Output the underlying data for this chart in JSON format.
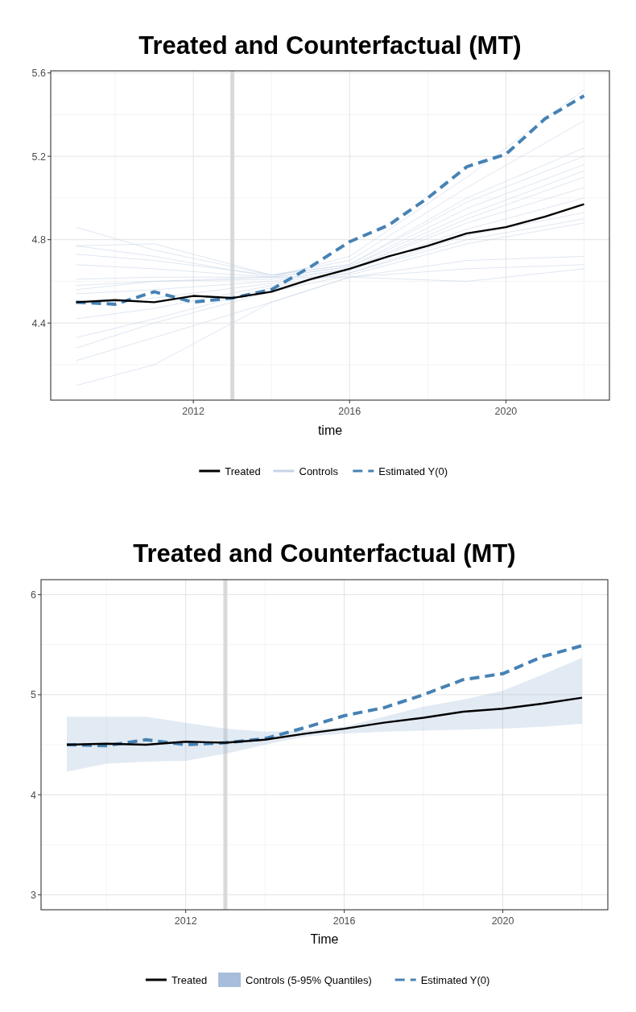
{
  "chart_data": [
    {
      "type": "line",
      "title": "Treated and Counterfactual (MT)",
      "xlabel": "time",
      "xlim": [
        2008.35,
        2022.65
      ],
      "ylim": [
        4.03,
        5.61
      ],
      "xticks": [
        2012,
        2016,
        2020
      ],
      "yticks": [
        4.4,
        4.8,
        5.2,
        5.6
      ],
      "grid": true,
      "legend": "bottom",
      "ref_lines": [
        {
          "axis": "x",
          "value": 2013,
          "color": "#d9d9d9"
        }
      ],
      "series": [
        {
          "name": "Treated",
          "color": "#000000",
          "line_style": "solid",
          "x": [
            2009,
            2010,
            2011,
            2012,
            2013,
            2014,
            2015,
            2016,
            2017,
            2018,
            2019,
            2020,
            2021,
            2022
          ],
          "values": [
            4.5,
            4.51,
            4.5,
            4.53,
            4.52,
            4.55,
            4.61,
            4.66,
            4.72,
            4.77,
            4.83,
            4.86,
            4.91,
            4.97
          ]
        },
        {
          "name": "Controls",
          "color": "#c6d4e8",
          "line_style": "solid",
          "x": [
            2009,
            2011,
            2014,
            2016,
            2019,
            2022
          ],
          "values": [
            4.1,
            4.2,
            4.5,
            4.62,
            4.66,
            4.68
          ]
        },
        {
          "color": "#c6d4e8",
          "line_style": "solid",
          "x": [
            2009,
            2011,
            2014,
            2016,
            2019,
            2022
          ],
          "values": [
            4.22,
            4.33,
            4.5,
            4.62,
            4.7,
            4.72
          ]
        },
        {
          "color": "#c6d4e8",
          "line_style": "solid",
          "x": [
            2009,
            2011,
            2014,
            2016,
            2019,
            2022
          ],
          "values": [
            4.28,
            4.4,
            4.55,
            4.63,
            4.78,
            4.88
          ]
        },
        {
          "color": "#c6d4e8",
          "line_style": "solid",
          "x": [
            2009,
            2011,
            2014,
            2016,
            2019,
            2022
          ],
          "values": [
            4.33,
            4.42,
            4.57,
            4.64,
            4.8,
            4.9
          ]
        },
        {
          "color": "#c6d4e8",
          "line_style": "solid",
          "x": [
            2009,
            2011,
            2014,
            2016,
            2019,
            2022
          ],
          "values": [
            4.42,
            4.47,
            4.58,
            4.64,
            4.82,
            4.93
          ]
        },
        {
          "color": "#c6d4e8",
          "line_style": "solid",
          "x": [
            2009,
            2011,
            2014,
            2016,
            2019,
            2022
          ],
          "values": [
            4.49,
            4.52,
            4.59,
            4.65,
            4.85,
            5.0
          ]
        },
        {
          "color": "#c6d4e8",
          "line_style": "solid",
          "x": [
            2009,
            2011,
            2014,
            2016,
            2019,
            2022
          ],
          "values": [
            4.54,
            4.56,
            4.6,
            4.66,
            4.88,
            5.05
          ]
        },
        {
          "color": "#c6d4e8",
          "line_style": "solid",
          "x": [
            2009,
            2011,
            2014,
            2016,
            2019,
            2022
          ],
          "values": [
            4.56,
            4.6,
            4.61,
            4.66,
            4.9,
            5.1
          ]
        },
        {
          "color": "#c6d4e8",
          "line_style": "solid",
          "x": [
            2009,
            2011,
            2014,
            2016,
            2019,
            2022
          ],
          "values": [
            4.61,
            4.62,
            4.62,
            4.67,
            4.92,
            5.13
          ]
        },
        {
          "color": "#c6d4e8",
          "line_style": "solid",
          "x": [
            2009,
            2011,
            2014,
            2016,
            2019,
            2022
          ],
          "values": [
            4.68,
            4.66,
            4.62,
            4.67,
            4.95,
            5.16
          ]
        },
        {
          "color": "#c6d4e8",
          "line_style": "solid",
          "x": [
            2009,
            2011,
            2014,
            2016,
            2019,
            2022
          ],
          "values": [
            4.73,
            4.7,
            4.63,
            4.68,
            4.98,
            5.2
          ]
        },
        {
          "color": "#c6d4e8",
          "line_style": "solid",
          "x": [
            2009,
            2011,
            2014,
            2016,
            2019,
            2022
          ],
          "values": [
            4.77,
            4.78,
            4.63,
            4.68,
            5.0,
            5.24
          ]
        },
        {
          "color": "#c6d4e8",
          "line_style": "solid",
          "x": [
            2009,
            2011,
            2014,
            2016,
            2019,
            2022
          ],
          "values": [
            4.77,
            4.72,
            4.62,
            4.62,
            4.6,
            4.66
          ]
        },
        {
          "color": "#c6d4e8",
          "line_style": "solid",
          "x": [
            2009,
            2011,
            2014,
            2016,
            2019,
            2022
          ],
          "values": [
            4.86,
            4.75,
            4.63,
            4.7,
            5.05,
            5.37
          ]
        },
        {
          "color": "#c6d4e8",
          "line_style": "solid",
          "x": [
            2009,
            2011,
            2014,
            2016,
            2019,
            2022
          ],
          "values": [
            4.58,
            4.6,
            4.62,
            4.72,
            5.1,
            5.52
          ]
        },
        {
          "name": "Estimated Y(0)",
          "color": "#4682b4",
          "line_style": "dashed",
          "x": [
            2009,
            2010,
            2011,
            2012,
            2013,
            2014,
            2015,
            2016,
            2017,
            2018,
            2019,
            2020,
            2021,
            2022
          ],
          "values": [
            4.5,
            4.49,
            4.55,
            4.5,
            4.52,
            4.56,
            4.67,
            4.79,
            4.87,
            5.0,
            5.15,
            5.21,
            5.38,
            5.49
          ]
        }
      ]
    },
    {
      "type": "line",
      "title": "Treated and Counterfactual (MT)",
      "xlabel": "Time",
      "xlim": [
        2008.35,
        2022.65
      ],
      "ylim": [
        2.85,
        6.15
      ],
      "xticks": [
        2012,
        2016,
        2020
      ],
      "yticks": [
        3,
        4,
        5,
        6
      ],
      "grid": true,
      "legend": "bottom",
      "ref_lines": [
        {
          "axis": "x",
          "value": 2013,
          "color": "#d9d9d9"
        }
      ],
      "series": [
        {
          "name": "Treated",
          "color": "#000000",
          "line_style": "solid",
          "x": [
            2009,
            2010,
            2011,
            2012,
            2013,
            2014,
            2015,
            2016,
            2017,
            2018,
            2019,
            2020,
            2021,
            2022
          ],
          "values": [
            4.5,
            4.51,
            4.5,
            4.53,
            4.52,
            4.55,
            4.61,
            4.66,
            4.72,
            4.77,
            4.83,
            4.86,
            4.91,
            4.97
          ]
        },
        {
          "name": "Controls (5-95% Quantiles)",
          "type": "area",
          "color": "#a6bddb",
          "x": [
            2009,
            2010,
            2011,
            2012,
            2013,
            2014,
            2015,
            2016,
            2017,
            2018,
            2019,
            2020,
            2021,
            2022
          ],
          "values": [
            null,
            null,
            null,
            null,
            null,
            null,
            null,
            null,
            null,
            null,
            null,
            null,
            null,
            null
          ],
          "lower": [
            4.23,
            4.31,
            4.33,
            4.34,
            4.41,
            4.5,
            4.58,
            4.61,
            4.63,
            4.64,
            4.65,
            4.66,
            4.68,
            4.71
          ],
          "upper": [
            4.78,
            4.78,
            4.78,
            4.72,
            4.66,
            4.63,
            4.64,
            4.68,
            4.78,
            4.88,
            4.95,
            5.04,
            5.2,
            5.37
          ]
        },
        {
          "name": "Estimated Y(0)",
          "color": "#4682b4",
          "line_style": "dashed",
          "x": [
            2009,
            2010,
            2011,
            2012,
            2013,
            2014,
            2015,
            2016,
            2017,
            2018,
            2019,
            2020,
            2021,
            2022
          ],
          "values": [
            4.5,
            4.49,
            4.55,
            4.5,
            4.52,
            4.56,
            4.67,
            4.79,
            4.87,
            5.0,
            5.15,
            5.21,
            5.38,
            5.49
          ]
        }
      ]
    }
  ]
}
